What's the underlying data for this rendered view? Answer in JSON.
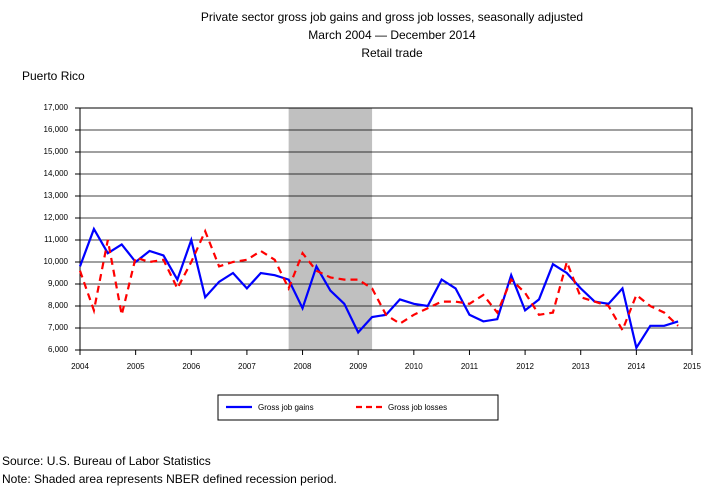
{
  "chart_data": {
    "type": "line",
    "title": [
      "Private sector gross job gains and gross job losses, seasonally adjusted",
      "March 2004 — December 2014",
      "Retail trade"
    ],
    "subtitle": "Puerto Rico",
    "x": [
      2004,
      2004.25,
      2004.5,
      2004.75,
      2005,
      2005.25,
      2005.5,
      2005.75,
      2006,
      2006.25,
      2006.5,
      2006.75,
      2007,
      2007.25,
      2007.5,
      2007.75,
      2008,
      2008.25,
      2008.5,
      2008.75,
      2009,
      2009.25,
      2009.5,
      2009.75,
      2010,
      2010.25,
      2010.5,
      2010.75,
      2011,
      2011.25,
      2011.5,
      2011.75,
      2012,
      2012.25,
      2012.5,
      2012.75,
      2013,
      2013.25,
      2013.5,
      2013.75,
      2014,
      2014.25,
      2014.5,
      2014.75
    ],
    "series": [
      {
        "name": "Gross job gains",
        "color": "#0000ff",
        "dash": false,
        "values": [
          9800,
          11500,
          10400,
          10800,
          10000,
          10500,
          10300,
          9200,
          11000,
          8400,
          9100,
          9500,
          8800,
          9500,
          9400,
          9200,
          7900,
          9800,
          8700,
          8100,
          6800,
          7500,
          7600,
          8300,
          8100,
          8000,
          9200,
          8800,
          7600,
          7300,
          7400,
          9400,
          7800,
          8300,
          9900,
          9500,
          8800,
          8200,
          8100,
          8800,
          6100,
          7100,
          7100,
          7300
        ]
      },
      {
        "name": "Gross job losses",
        "color": "#ff0000",
        "dash": true,
        "values": [
          9600,
          7800,
          11000,
          7600,
          10200,
          10000,
          10100,
          8800,
          10000,
          11400,
          9800,
          10000,
          10100,
          10500,
          10100,
          8800,
          10400,
          9600,
          9300,
          9200,
          9200,
          8800,
          7600,
          7200,
          7600,
          7900,
          8200,
          8200,
          8100,
          8500,
          7700,
          9200,
          8600,
          7600,
          7700,
          10000,
          8400,
          8200,
          8000,
          6900,
          8500,
          8000,
          7700,
          7100
        ]
      }
    ],
    "xlim": [
      2004,
      2015
    ],
    "xticks": [
      2004,
      2005,
      2006,
      2007,
      2008,
      2009,
      2010,
      2011,
      2012,
      2013,
      2014,
      2015
    ],
    "ylim": [
      6000,
      17000
    ],
    "yticks": [
      {
        "value": 6000,
        "label": "6,000"
      },
      {
        "value": 7000,
        "label": "7,000"
      },
      {
        "value": 8000,
        "label": "8,000"
      },
      {
        "value": 9000,
        "label": "9,000"
      },
      {
        "value": 10000,
        "label": "10,000"
      },
      {
        "value": 11000,
        "label": "11,000"
      },
      {
        "value": 12000,
        "label": "12,000"
      },
      {
        "value": 13000,
        "label": "13,000"
      },
      {
        "value": 14000,
        "label": "14,000"
      },
      {
        "value": 15000,
        "label": "15,000"
      },
      {
        "value": 16000,
        "label": "16,000"
      },
      {
        "value": 17000,
        "label": "17,000"
      }
    ],
    "shaded": [
      2007.75,
      2009.25
    ],
    "grid": true,
    "source": "Source: U.S. Bureau of Labor Statistics",
    "note": "Note: Shaded area represents NBER defined recession period."
  }
}
